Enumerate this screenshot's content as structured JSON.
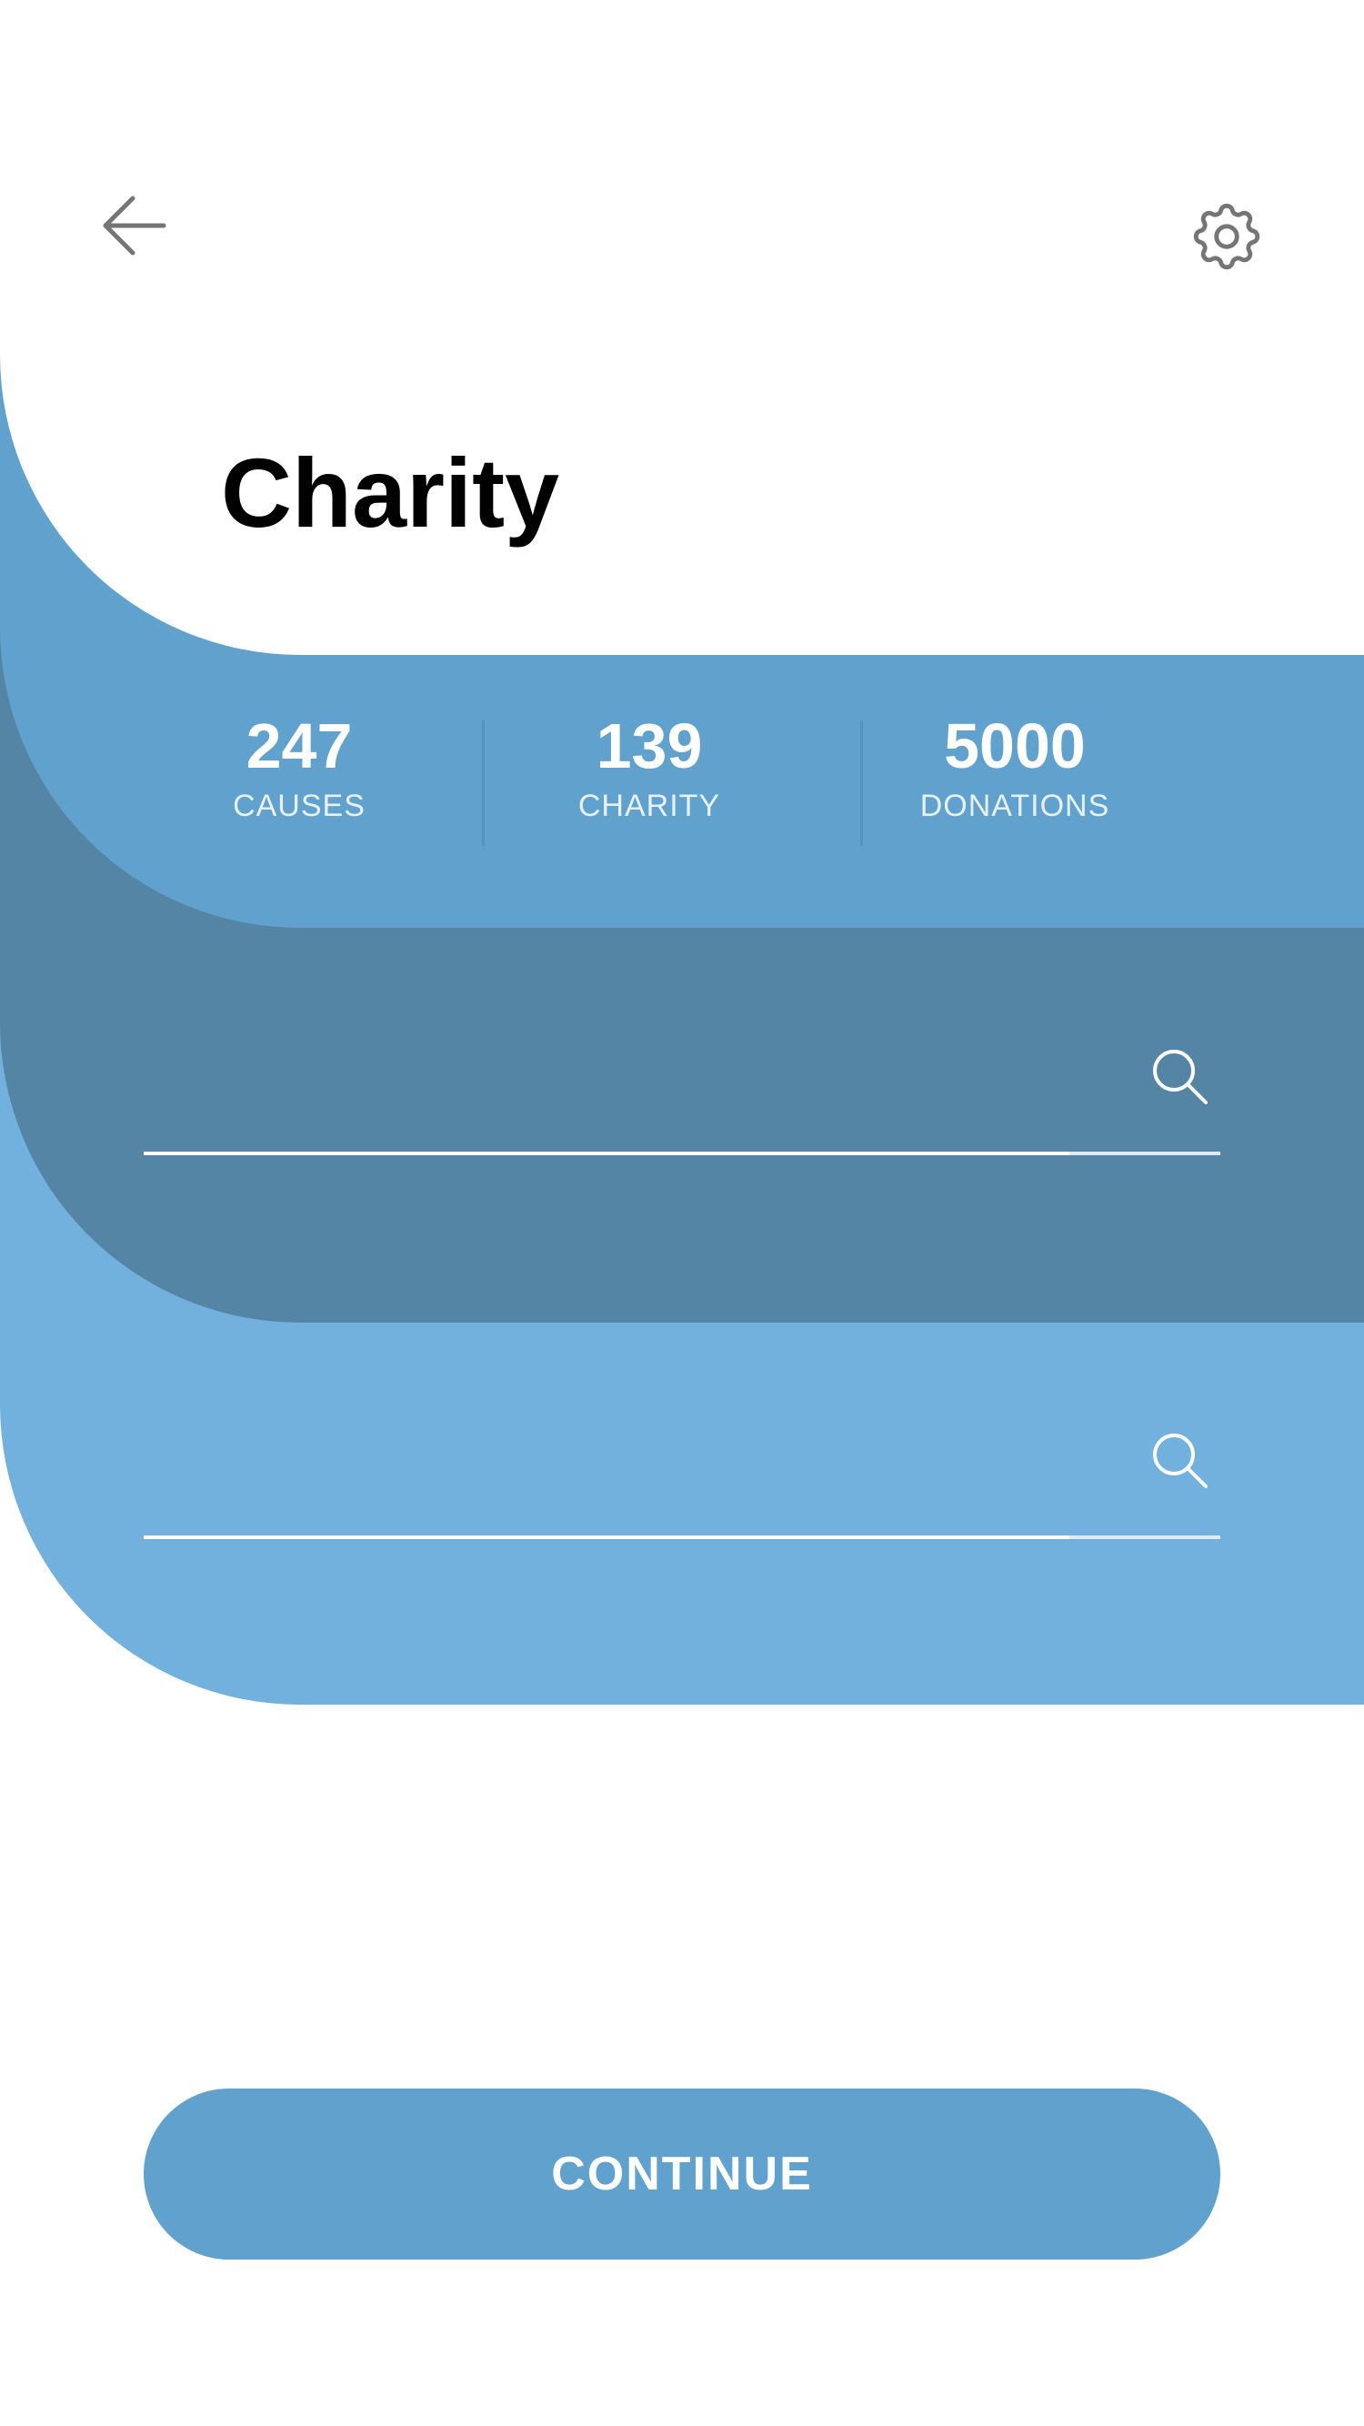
{
  "header": {
    "back_icon": "arrow-left-icon",
    "settings_icon": "gear-icon",
    "title": "Charity"
  },
  "stats": [
    {
      "value": "247",
      "label": "CAUSES"
    },
    {
      "value": "139",
      "label": "CHARITY"
    },
    {
      "value": "5000",
      "label": "DONATIONS"
    }
  ],
  "search_fields": [
    {
      "value": "",
      "placeholder": "",
      "icon": "search-icon"
    },
    {
      "value": "",
      "placeholder": "",
      "icon": "search-icon"
    }
  ],
  "actions": {
    "continue_label": "CONTINUE"
  },
  "colors": {
    "primary": "#60a1cd",
    "dark_band": "#5585a4",
    "light_band": "#72b0dd",
    "icon_gray": "#757575",
    "title": "#000000"
  }
}
